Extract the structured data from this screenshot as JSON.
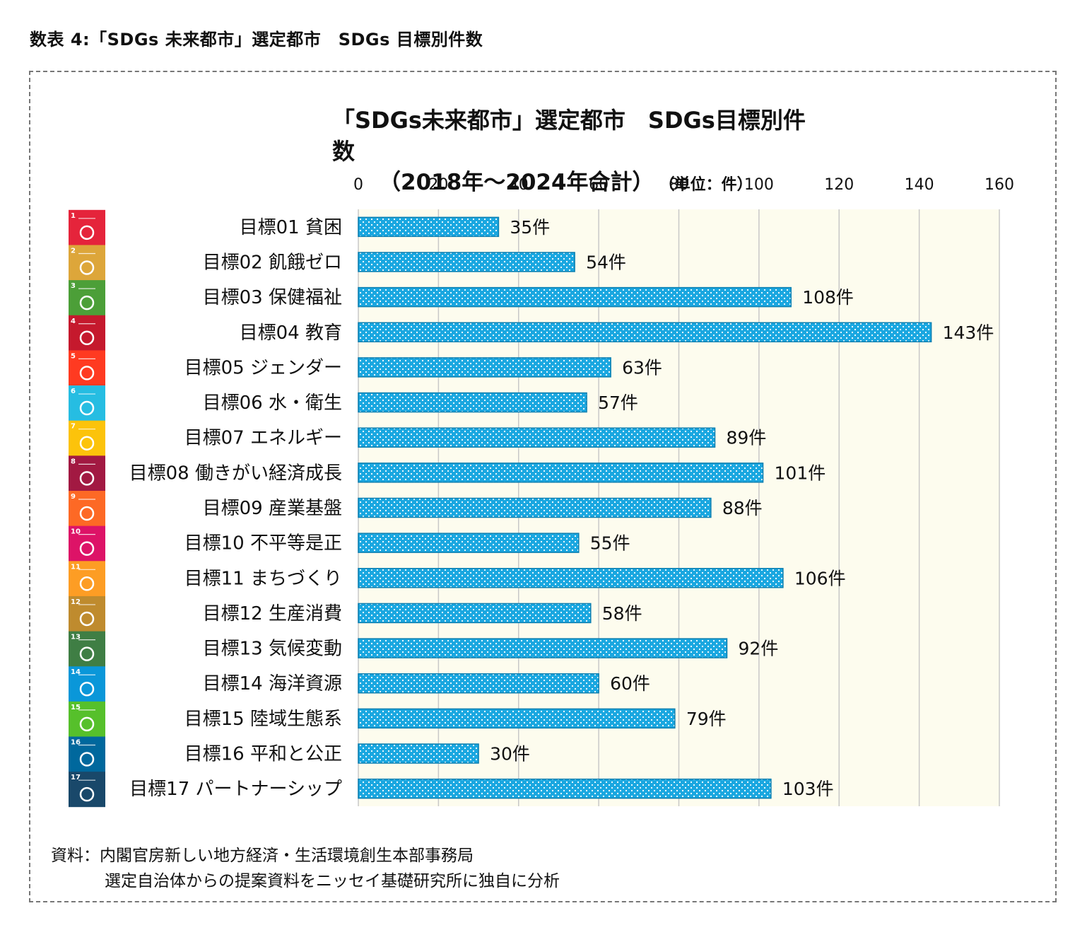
{
  "figure_caption": "数表 4:「SDGs 未来都市」選定都市　SDGs 目標別件数",
  "chart_data": {
    "type": "bar",
    "orientation": "horizontal",
    "title": "「SDGs未来都市」選定都市　SDGs目標別件数",
    "subtitle": "（2018年～2024年合計）",
    "unit_label": "（単位：件）",
    "xlim": [
      0,
      160
    ],
    "x_ticks": [
      "0",
      "20",
      "40",
      "60",
      "80",
      "100",
      "120",
      "140",
      "160"
    ],
    "grid": true,
    "categories": [
      "目標01  貧困",
      "目標02  飢餓ゼロ",
      "目標03  保健福祉",
      "目標04  教育",
      "目標05  ジェンダー",
      "目標06  水・衛生",
      "目標07  エネルギー",
      "目標08  働きがい経済成長",
      "目標09  産業基盤",
      "目標10  不平等是正",
      "目標11  まちづくり",
      "目標12  生産消費",
      "目標13  気候変動",
      "目標14  海洋資源",
      "目標15  陸域生態系",
      "目標16  平和と公正",
      "目標17  パートナーシップ"
    ],
    "values": [
      35,
      54,
      108,
      143,
      63,
      57,
      89,
      101,
      88,
      55,
      106,
      58,
      92,
      60,
      79,
      30,
      103
    ],
    "data_labels": [
      "35件",
      "54件",
      "108件",
      "143件",
      "63件",
      "57件",
      "89件",
      "101件",
      "88件",
      "55件",
      "106件",
      "58件",
      "92件",
      "60件",
      "79件",
      "30件",
      "103件"
    ],
    "bar_color": "#1aa7e0",
    "bar_pattern": "white-dots",
    "plot_background": "#fdfcee"
  },
  "sdg_icons": [
    {
      "num": "1",
      "color": "#e5243b",
      "icon": "people-icon"
    },
    {
      "num": "2",
      "color": "#dda63a",
      "icon": "bowl-icon"
    },
    {
      "num": "3",
      "color": "#4c9f38",
      "icon": "heartbeat-icon"
    },
    {
      "num": "4",
      "color": "#c5192d",
      "icon": "book-icon"
    },
    {
      "num": "5",
      "color": "#ff3a21",
      "icon": "gender-icon"
    },
    {
      "num": "6",
      "color": "#26bde2",
      "icon": "water-drop-icon"
    },
    {
      "num": "7",
      "color": "#fcc30b",
      "icon": "sun-icon"
    },
    {
      "num": "8",
      "color": "#a21942",
      "icon": "growth-chart-icon"
    },
    {
      "num": "9",
      "color": "#fd6925",
      "icon": "cubes-icon"
    },
    {
      "num": "10",
      "color": "#dd1367",
      "icon": "equal-icon"
    },
    {
      "num": "11",
      "color": "#fd9d24",
      "icon": "buildings-icon"
    },
    {
      "num": "12",
      "color": "#bf8b2e",
      "icon": "infinity-icon"
    },
    {
      "num": "13",
      "color": "#3f7e44",
      "icon": "eye-globe-icon"
    },
    {
      "num": "14",
      "color": "#0a97d9",
      "icon": "fish-icon"
    },
    {
      "num": "15",
      "color": "#56c02b",
      "icon": "tree-icon"
    },
    {
      "num": "16",
      "color": "#00689d",
      "icon": "dove-icon"
    },
    {
      "num": "17",
      "color": "#19486a",
      "icon": "flower-rings-icon"
    }
  ],
  "source": {
    "line1": "資料：内閣官房新しい地方経済・生活環境創生本部事務局",
    "line2": "選定自治体からの提案資料をニッセイ基礎研究所に独自に分析"
  }
}
